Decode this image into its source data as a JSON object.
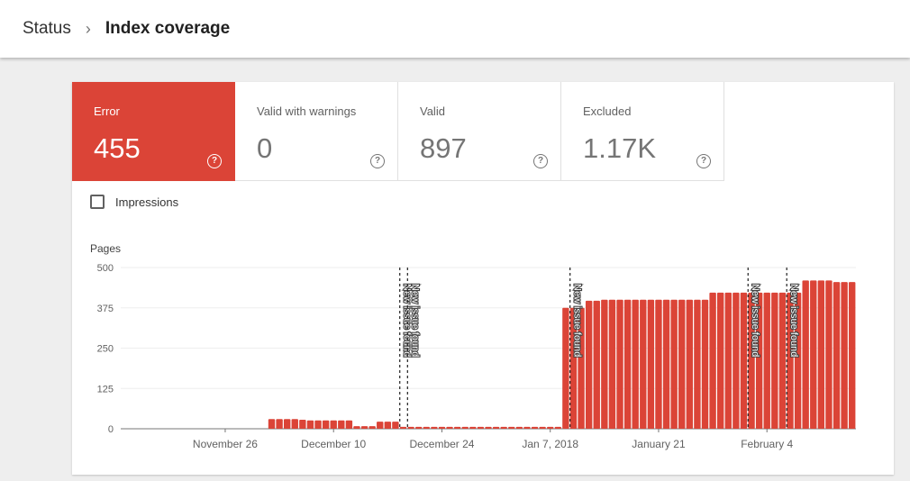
{
  "breadcrumb": {
    "root": "Status",
    "separator": "›",
    "current": "Index coverage"
  },
  "tiles": [
    {
      "label": "Error",
      "value": "455",
      "active": true
    },
    {
      "label": "Valid with warnings",
      "value": "0",
      "active": false
    },
    {
      "label": "Valid",
      "value": "897",
      "active": false
    },
    {
      "label": "Excluded",
      "value": "1.17K",
      "active": false
    }
  ],
  "help_glyph": "?",
  "impressions": {
    "label": "Impressions",
    "checked": false
  },
  "colors": {
    "error": "#db4437",
    "annotation_line": "#212121",
    "axis": "#757575",
    "grid": "#eeeeee"
  },
  "chart_data": {
    "type": "bar",
    "ylabel": "Pages",
    "ylim": [
      0,
      500
    ],
    "yticks": [
      0,
      125,
      250,
      375,
      500
    ],
    "x_tick_labels": [
      {
        "index": 13,
        "label": "November 26"
      },
      {
        "index": 27,
        "label": "December 10"
      },
      {
        "index": 41,
        "label": "December 24"
      },
      {
        "index": 55,
        "label": "Jan 7, 2018"
      },
      {
        "index": 69,
        "label": "January 21"
      },
      {
        "index": 83,
        "label": "February 4"
      }
    ],
    "values": [
      0,
      0,
      0,
      0,
      0,
      0,
      0,
      0,
      0,
      0,
      0,
      0,
      0,
      0,
      0,
      0,
      0,
      0,
      0,
      30,
      30,
      30,
      30,
      28,
      26,
      26,
      26,
      26,
      26,
      26,
      8,
      8,
      8,
      22,
      22,
      22,
      6,
      6,
      6,
      6,
      6,
      6,
      6,
      6,
      6,
      6,
      6,
      6,
      6,
      6,
      6,
      6,
      6,
      6,
      6,
      6,
      6,
      375,
      375,
      375,
      397,
      397,
      400,
      400,
      400,
      400,
      400,
      400,
      400,
      400,
      400,
      400,
      400,
      400,
      400,
      400,
      422,
      422,
      422,
      422,
      422,
      422,
      422,
      422,
      422,
      422,
      422,
      422,
      460,
      460,
      460,
      460,
      455,
      455,
      455
    ],
    "annotations": [
      {
        "index": 36,
        "label": "New issue found"
      },
      {
        "index": 37,
        "label": "New issue found"
      },
      {
        "index": 58,
        "label": "New issue found"
      },
      {
        "index": 81,
        "label": "New issue found"
      },
      {
        "index": 86,
        "label": "New issue found"
      }
    ]
  }
}
